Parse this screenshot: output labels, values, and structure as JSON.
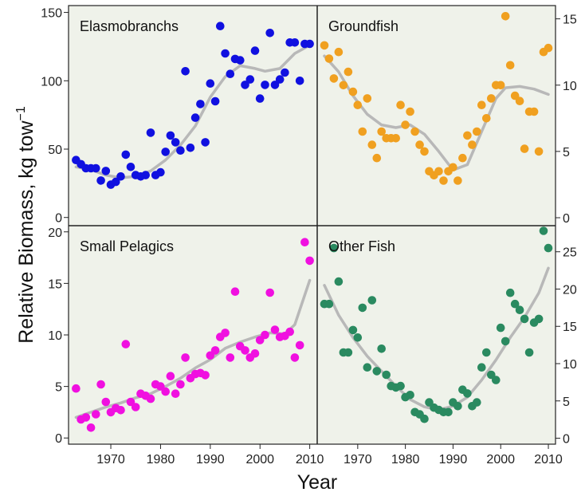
{
  "figure": {
    "cut_title": "                                   ",
    "xlabel": "Year",
    "ylabel": "Relative Biomass, kg tow",
    "ylabel_exponent": "−1",
    "panel_background": "#eff2ea",
    "smooth_color": "#b8b8b8"
  },
  "chart_data": [
    {
      "type": "scatter",
      "title": "Elasmobranchs",
      "color": "#1010e0",
      "xlim": [
        1961.5,
        2011.5
      ],
      "ylim": [
        -6,
        155
      ],
      "yticks": [
        0,
        50,
        100,
        150
      ],
      "xticks": [
        1970,
        1980,
        1990,
        2000,
        2010
      ],
      "y_axis_side": "left",
      "x": [
        1963,
        1964,
        1965,
        1966,
        1967,
        1968,
        1969,
        1970,
        1971,
        1972,
        1973,
        1974,
        1975,
        1976,
        1977,
        1978,
        1979,
        1980,
        1981,
        1982,
        1983,
        1984,
        1985,
        1986,
        1987,
        1988,
        1989,
        1990,
        1991,
        1992,
        1993,
        1994,
        1995,
        1996,
        1997,
        1998,
        1999,
        2000,
        2001,
        2002,
        2003,
        2004,
        2005,
        2006,
        2007,
        2008,
        2009,
        2010
      ],
      "y": [
        42,
        39,
        36,
        36,
        36,
        27,
        34,
        24,
        26,
        30,
        46,
        37,
        31,
        30,
        31,
        62,
        31,
        33,
        48,
        60,
        55,
        49,
        107,
        51,
        73,
        83,
        55,
        98,
        85,
        140,
        120,
        105,
        116,
        115,
        97,
        101,
        122,
        87,
        97,
        135,
        97,
        101,
        106,
        128,
        128,
        100,
        127,
        127
      ],
      "smooth_x": [
        1963,
        1966,
        1969,
        1972,
        1975,
        1978,
        1981,
        1984,
        1987,
        1990,
        1993,
        1996,
        1999,
        2001,
        2004,
        2007,
        2010
      ],
      "smooth_y": [
        37,
        35,
        31,
        29,
        30,
        34,
        42,
        53,
        67,
        88,
        103,
        111,
        109,
        107,
        109,
        120,
        126
      ]
    },
    {
      "type": "scatter",
      "title": "Groundfish",
      "color": "#f0a020",
      "xlim": [
        1961.5,
        2011.5
      ],
      "ylim": [
        -0.6,
        16
      ],
      "yticks": [
        0,
        5,
        10,
        15
      ],
      "xticks": [
        1970,
        1980,
        1990,
        2000,
        2010
      ],
      "y_axis_side": "right",
      "x": [
        1963,
        1964,
        1965,
        1966,
        1967,
        1968,
        1969,
        1970,
        1971,
        1972,
        1973,
        1974,
        1975,
        1976,
        1977,
        1978,
        1979,
        1980,
        1981,
        1982,
        1983,
        1984,
        1985,
        1986,
        1987,
        1988,
        1989,
        1990,
        1991,
        1992,
        1993,
        1994,
        1995,
        1996,
        1997,
        1998,
        1999,
        2000,
        2001,
        2002,
        2003,
        2004,
        2005,
        2006,
        2007,
        2008,
        2009,
        2010
      ],
      "y": [
        13,
        12,
        10.5,
        12.5,
        10,
        11,
        9.5,
        8.5,
        6.5,
        9,
        5.5,
        4.5,
        6.5,
        6,
        6,
        6,
        8.5,
        7,
        8,
        6.5,
        5.5,
        5,
        3.5,
        3.2,
        3.5,
        2.8,
        3.5,
        3.8,
        2.8,
        4.5,
        6.2,
        5.5,
        6.5,
        8.5,
        7.5,
        9,
        10,
        10,
        15.2,
        11.5,
        9.2,
        8.8,
        5.2,
        8,
        8,
        5,
        12.5,
        12.8
      ],
      "smooth_x": [
        1963,
        1966,
        1969,
        1972,
        1975,
        1978,
        1981,
        1984,
        1987,
        1990,
        1993,
        1996,
        1999,
        2001,
        2004,
        2007,
        2010
      ],
      "smooth_y": [
        12.2,
        11,
        9.2,
        7.8,
        7,
        6.8,
        7,
        6.3,
        5,
        3.6,
        4,
        6.5,
        9,
        9.8,
        9.9,
        9.7,
        9.3
      ]
    },
    {
      "type": "scatter",
      "title": "Small Pelagics",
      "color": "#f010e0",
      "xlim": [
        1961.5,
        2011.5
      ],
      "ylim": [
        -0.6,
        20.6
      ],
      "yticks": [
        0,
        5,
        10,
        15,
        20
      ],
      "xticks": [
        1970,
        1980,
        1990,
        2000,
        2010
      ],
      "y_axis_side": "left",
      "x": [
        1963,
        1964,
        1965,
        1966,
        1967,
        1968,
        1969,
        1970,
        1971,
        1972,
        1973,
        1974,
        1975,
        1976,
        1977,
        1978,
        1979,
        1980,
        1981,
        1982,
        1983,
        1984,
        1985,
        1986,
        1987,
        1988,
        1989,
        1990,
        1991,
        1992,
        1993,
        1994,
        1995,
        1996,
        1997,
        1998,
        1999,
        2000,
        2001,
        2002,
        2003,
        2004,
        2005,
        2006,
        2007,
        2008,
        2009,
        2010
      ],
      "y": [
        4.8,
        1.8,
        2,
        1,
        2.3,
        5.2,
        3.5,
        2.5,
        2.9,
        2.7,
        9.1,
        3.5,
        3,
        4.3,
        4.1,
        3.8,
        5.2,
        5,
        4.5,
        6,
        4.3,
        5.2,
        7.8,
        5.8,
        6.2,
        6.3,
        6.1,
        8,
        8.5,
        9.8,
        10.2,
        7.8,
        14.2,
        8.9,
        8.5,
        7.8,
        8.2,
        9.5,
        10,
        14.1,
        10.5,
        9.8,
        9.9,
        10.3,
        7.8,
        9,
        19,
        17.2
      ],
      "smooth_x": [
        1963,
        1966,
        1969,
        1972,
        1975,
        1978,
        1981,
        1984,
        1987,
        1990,
        1993,
        1996,
        1999,
        2002,
        2005,
        2007,
        2010
      ],
      "smooth_y": [
        2,
        2.5,
        3,
        3.4,
        3.9,
        4.3,
        5,
        5.8,
        6.8,
        7.6,
        8.7,
        9.3,
        9.8,
        10.2,
        10.1,
        11,
        15.3
      ]
    },
    {
      "type": "scatter",
      "title": "Other Fish",
      "color": "#2a8a60",
      "xlim": [
        1961.5,
        2011.5
      ],
      "ylim": [
        -0.8,
        28.5
      ],
      "yticks": [
        0,
        5,
        10,
        15,
        20,
        25
      ],
      "xticks": [
        1970,
        1980,
        1990,
        2000,
        2010
      ],
      "y_axis_side": "right",
      "x": [
        1963,
        1964,
        1965,
        1966,
        1967,
        1968,
        1969,
        1970,
        1971,
        1972,
        1973,
        1974,
        1975,
        1976,
        1977,
        1978,
        1979,
        1980,
        1981,
        1982,
        1983,
        1984,
        1985,
        1986,
        1987,
        1988,
        1989,
        1990,
        1991,
        1992,
        1993,
        1994,
        1995,
        1996,
        1997,
        1998,
        1999,
        2000,
        2001,
        2002,
        2003,
        2004,
        2005,
        2006,
        2007,
        2008,
        2009,
        2010
      ],
      "y": [
        18,
        18,
        25.5,
        21,
        11.5,
        11.5,
        14.5,
        13.5,
        17.5,
        9.5,
        18.5,
        9,
        12,
        8.5,
        7,
        6.8,
        7,
        5.5,
        5.8,
        3.5,
        3.2,
        2.6,
        4.8,
        4.1,
        3.8,
        3.5,
        3.5,
        4.8,
        4.3,
        6.5,
        6,
        4.3,
        4.8,
        9.5,
        11.5,
        8.5,
        7.8,
        14.8,
        13,
        19.5,
        18,
        17.2,
        16,
        11.5,
        15.5,
        16,
        27.8,
        25.5
      ],
      "smooth_x": [
        1963,
        1966,
        1969,
        1972,
        1975,
        1978,
        1981,
        1984,
        1987,
        1990,
        1993,
        1996,
        1999,
        2002,
        2005,
        2008,
        2010
      ],
      "smooth_y": [
        20.5,
        16.5,
        13.5,
        11,
        9,
        7,
        5.2,
        4.2,
        3.8,
        4.3,
        5.5,
        7.8,
        10.5,
        13.5,
        16.2,
        19.5,
        22.8
      ]
    }
  ]
}
